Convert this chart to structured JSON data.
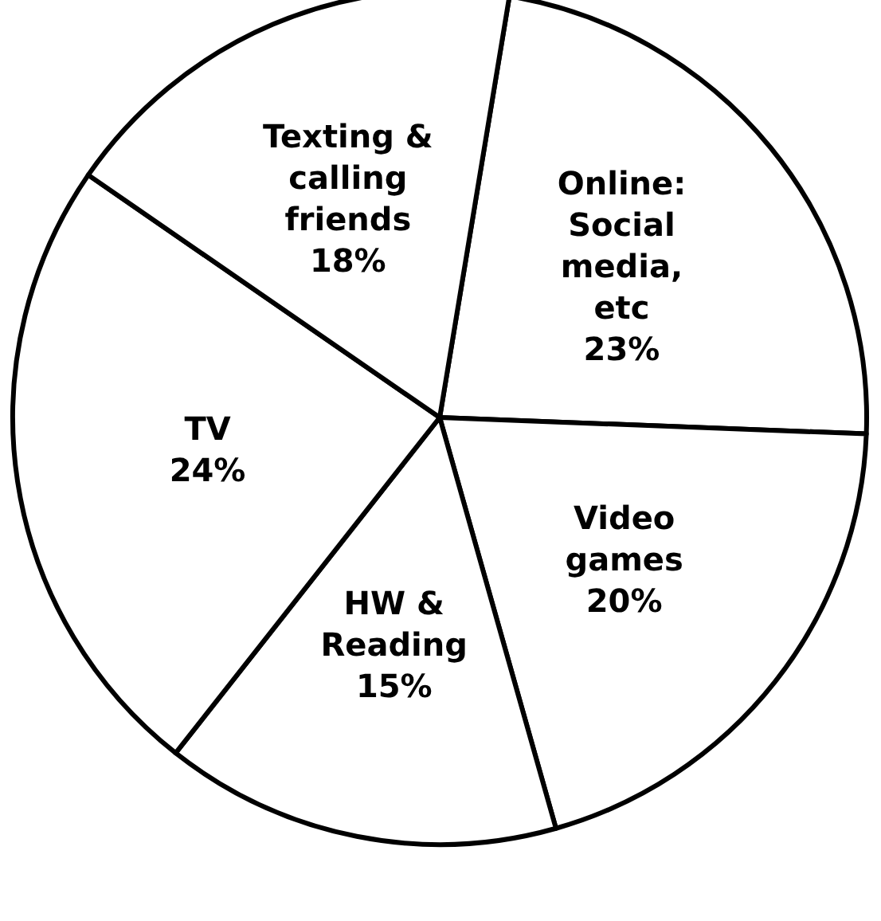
{
  "chart_data": {
    "type": "pie",
    "categories": [
      "Online: Social media, etc",
      "Video games",
      "HW & Reading",
      "TV",
      "Texting & calling friends"
    ],
    "values": [
      23,
      20,
      15,
      24,
      18
    ],
    "colors": [
      "#ffffff",
      "#ffffff",
      "#ffffff",
      "#ffffff",
      "#ffffff"
    ],
    "value_labels": [
      "23%",
      "20%",
      "15%",
      "24%",
      "18%"
    ]
  }
}
